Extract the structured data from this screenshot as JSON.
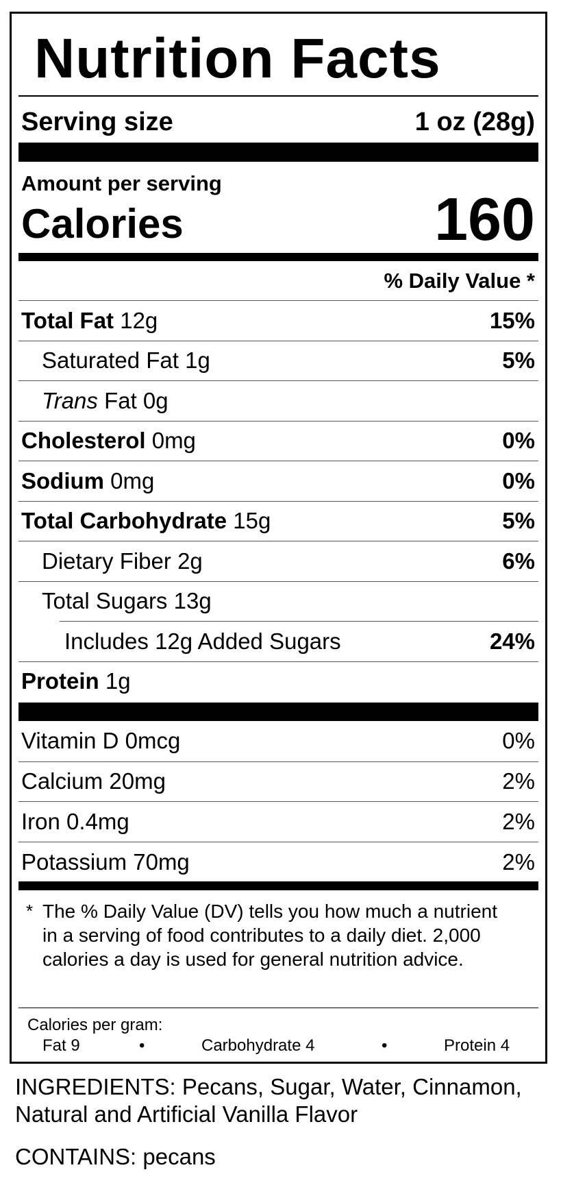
{
  "header": {
    "title": "Nutrition Facts",
    "serving_label": "Serving size",
    "serving_value": "1 oz (28g)"
  },
  "calories": {
    "amount_label": "Amount per serving",
    "label": "Calories",
    "value": "160"
  },
  "daily_value_header": "% Daily Value *",
  "nutrients": [
    {
      "name": "Total Fat",
      "amount": "12g",
      "dv": "15%",
      "children": [
        {
          "name": "Saturated Fat",
          "amount": "1g",
          "dv": "5%"
        },
        {
          "name_italic": "Trans",
          "amount": "Fat 0g"
        }
      ]
    },
    {
      "name": "Cholesterol",
      "amount": "0mg",
      "dv": "0%"
    },
    {
      "name": "Sodium",
      "amount": "0mg",
      "dv": "0%"
    },
    {
      "name": "Total Carbohydrate",
      "amount": "15g",
      "dv": "5%",
      "children": [
        {
          "name": "Dietary Fiber",
          "amount": "2g",
          "dv": "6%"
        },
        {
          "name": "Total Sugars",
          "amount": "13g",
          "children": [
            {
              "name": "Includes 12g Added Sugars",
              "dv": "24%"
            }
          ]
        }
      ]
    },
    {
      "name": "Protein",
      "amount": "1g"
    }
  ],
  "vitamins": [
    {
      "name": "Vitamin D",
      "amount": "0mcg",
      "dv": "0%"
    },
    {
      "name": "Calcium",
      "amount": "20mg",
      "dv": "2%"
    },
    {
      "name": "Iron",
      "amount": "0.4mg",
      "dv": "2%"
    },
    {
      "name": "Potassium",
      "amount": "70mg",
      "dv": "2%"
    }
  ],
  "footnote": {
    "mark": "*",
    "text": "The % Daily Value (DV) tells you how much a nutrient in a serving of food contributes to a daily diet. 2,000 calories a day is used for general nutrition advice."
  },
  "calories_per_gram": {
    "title": "Calories per gram:",
    "items": [
      "Fat 9",
      "Carbohydrate 4",
      "Protein 4"
    ]
  },
  "ingredients": "INGREDIENTS: Pecans, Sugar, Water, Cinnamon, Natural and Artificial Vanilla Flavor",
  "contains": "CONTAINS: pecans"
}
